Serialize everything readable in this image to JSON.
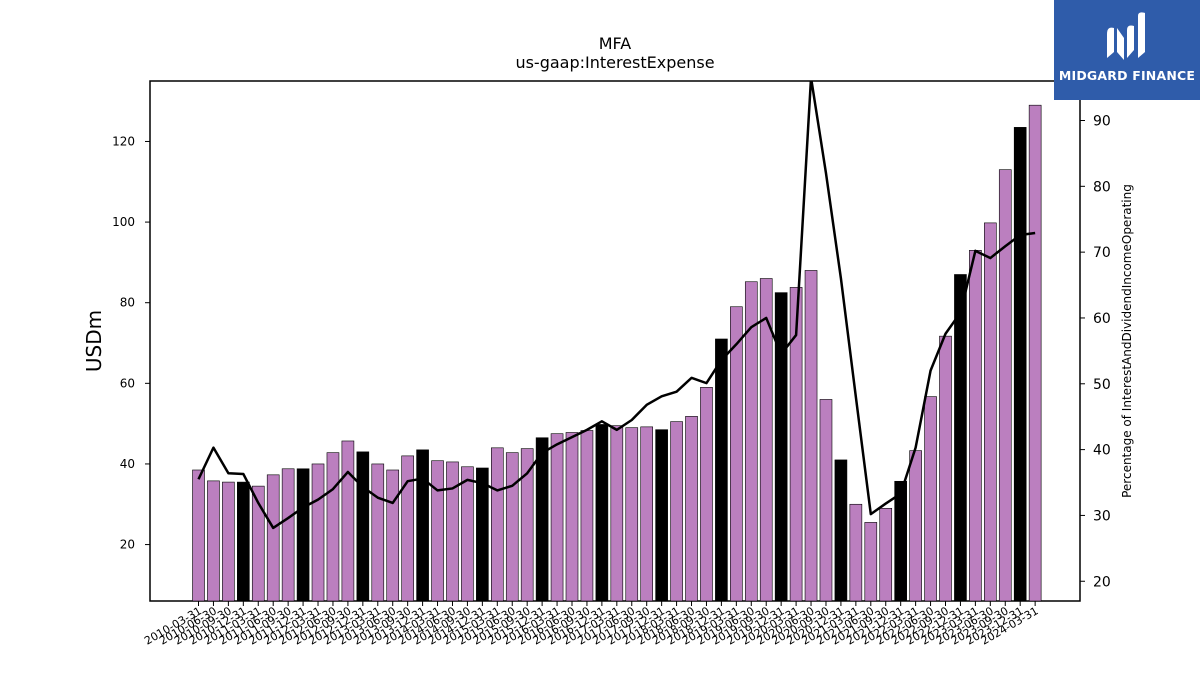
{
  "logo": {
    "text": "MIDGARD FINANCE"
  },
  "colors": {
    "bar_normal": "#bb7fbf",
    "bar_highlight": "#000000",
    "line": "#000000"
  },
  "chart_data": {
    "type": "bar",
    "title": "MFA",
    "subtitle": "us-gaap:InterestExpense",
    "ylabel": "USDm",
    "y2label": "Percentage of InterestAndDividendIncomeOperating",
    "ylim": [
      6,
      135
    ],
    "y2lim": [
      17,
      96
    ],
    "yticks": [
      20,
      40,
      60,
      80,
      100,
      120
    ],
    "y2ticks": [
      20,
      30,
      40,
      50,
      60,
      70,
      80,
      90
    ],
    "categories": [
      "2010-03-31",
      "2010-06-30",
      "2010-09-30",
      "2010-12-31",
      "2011-03-31",
      "2011-06-30",
      "2011-09-30",
      "2011-12-31",
      "2012-03-31",
      "2012-06-30",
      "2012-09-30",
      "2012-12-31",
      "2013-03-31",
      "2013-06-30",
      "2013-09-30",
      "2013-12-31",
      "2014-03-31",
      "2014-06-30",
      "2014-09-30",
      "2014-12-31",
      "2015-03-31",
      "2015-06-30",
      "2015-09-30",
      "2015-12-31",
      "2016-03-31",
      "2016-06-30",
      "2016-09-30",
      "2016-12-31",
      "2017-03-31",
      "2017-06-30",
      "2017-09-30",
      "2017-12-31",
      "2018-03-31",
      "2018-06-30",
      "2018-09-30",
      "2018-12-31",
      "2019-03-31",
      "2019-06-30",
      "2019-09-30",
      "2019-12-31",
      "2020-03-31",
      "2020-06-30",
      "2020-09-30",
      "2020-12-31",
      "2021-03-31",
      "2021-06-30",
      "2021-09-30",
      "2021-12-31",
      "2022-03-31",
      "2022-06-30",
      "2022-09-30",
      "2022-12-31",
      "2023-03-31",
      "2023-06-30",
      "2023-09-30",
      "2023-12-31",
      "2024-03-31"
    ],
    "series": [
      {
        "name": "InterestExpense",
        "axis": "left",
        "values": [
          38.5,
          35.8,
          35.5,
          35.5,
          34.5,
          37.3,
          38.8,
          38.8,
          40.0,
          42.8,
          45.7,
          43.0,
          40.0,
          38.5,
          42.0,
          43.5,
          40.8,
          40.5,
          39.3,
          39.0,
          44.0,
          42.8,
          43.8,
          46.5,
          47.5,
          47.8,
          48.3,
          49.8,
          49.5,
          49.0,
          49.2,
          48.5,
          50.5,
          51.8,
          59.0,
          71.0,
          79.0,
          85.2,
          86.0,
          82.5,
          83.8,
          88.0,
          56.0,
          41.0,
          30.0,
          25.5,
          29.0,
          35.7,
          43.3,
          56.7,
          71.7,
          87.0,
          93.0,
          99.8,
          113.0,
          123.5,
          129.0
        ],
        "highlight": [
          false,
          false,
          false,
          true,
          false,
          false,
          false,
          true,
          false,
          false,
          false,
          true,
          false,
          false,
          false,
          true,
          false,
          false,
          false,
          true,
          false,
          false,
          false,
          true,
          false,
          false,
          false,
          true,
          false,
          false,
          false,
          true,
          false,
          false,
          false,
          true,
          false,
          false,
          false,
          true,
          false,
          false,
          false,
          true,
          false,
          false,
          false,
          true,
          false,
          false,
          false,
          true,
          false,
          false,
          false,
          true,
          false
        ]
      },
      {
        "name": "Percentage of InterestAndDividendIncomeOperating",
        "axis": "right",
        "type": "line",
        "values": [
          35.5,
          40.3,
          36.4,
          36.3,
          31.9,
          28.1,
          29.6,
          31.2,
          32.4,
          34.0,
          36.6,
          34.3,
          32.7,
          31.9,
          35.2,
          35.6,
          33.8,
          34.1,
          35.4,
          34.9,
          33.8,
          34.5,
          36.4,
          39.5,
          40.8,
          41.9,
          43.0,
          44.3,
          43.0,
          44.5,
          46.8,
          48.1,
          48.8,
          50.9,
          50.1,
          53.6,
          56.0,
          58.6,
          60.0,
          54.5,
          57.4,
          96.5,
          82.0,
          66.0,
          48.0,
          30.2,
          31.8,
          33.3,
          40.3,
          52.0,
          57.6,
          60.8,
          70.2,
          69.1,
          70.9,
          72.6,
          72.9
        ]
      }
    ]
  }
}
